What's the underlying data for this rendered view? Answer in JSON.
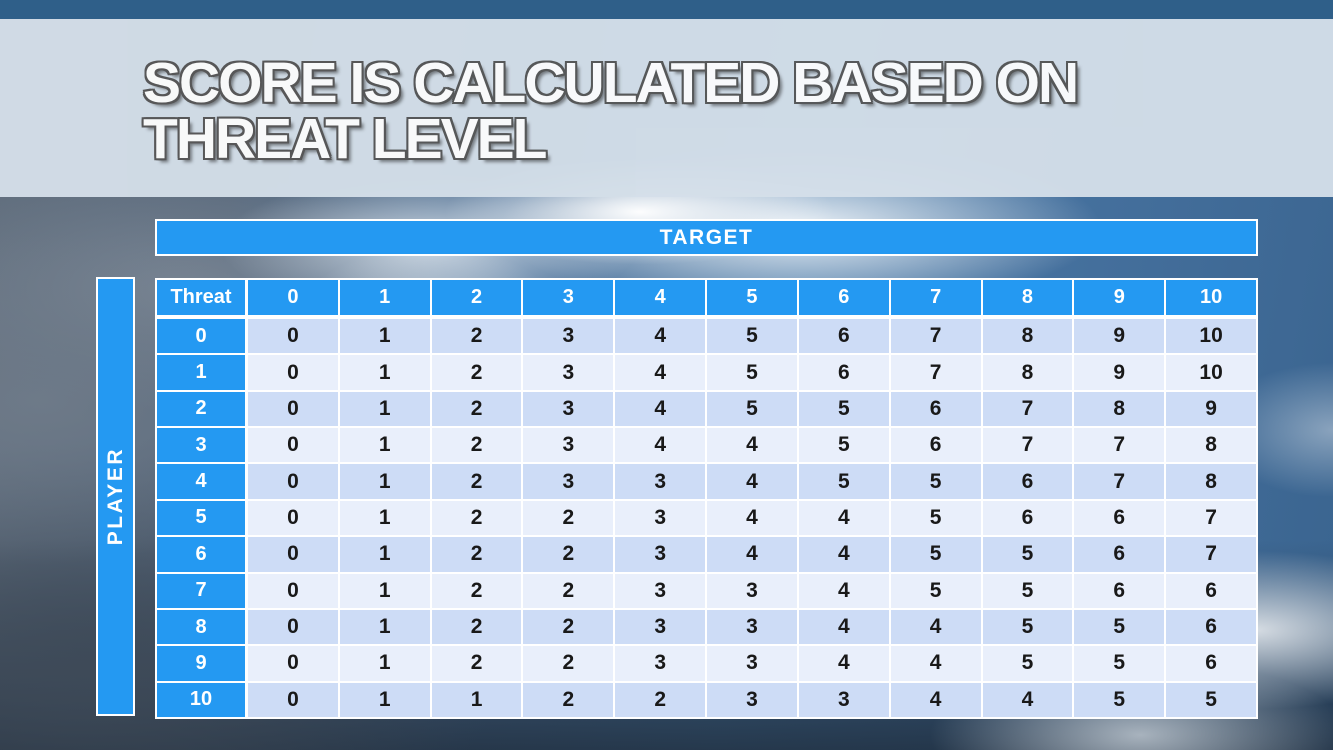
{
  "slide": {
    "title_line1": "SCORE IS CALCULATED BASED ON",
    "title_line2": "THREAT LEVEL"
  },
  "matrix": {
    "target_label": "TARGET",
    "player_label": "PLAYER",
    "corner_label": "Threat",
    "col_headers": [
      "0",
      "1",
      "2",
      "3",
      "4",
      "5",
      "6",
      "7",
      "8",
      "9",
      "10"
    ],
    "row_headers": [
      "0",
      "1",
      "2",
      "3",
      "4",
      "5",
      "6",
      "7",
      "8",
      "9",
      "10"
    ],
    "values": [
      [
        0,
        1,
        2,
        3,
        4,
        5,
        6,
        7,
        8,
        9,
        10
      ],
      [
        0,
        1,
        2,
        3,
        4,
        5,
        6,
        7,
        8,
        9,
        10
      ],
      [
        0,
        1,
        2,
        3,
        4,
        5,
        5,
        6,
        7,
        8,
        9
      ],
      [
        0,
        1,
        2,
        3,
        4,
        4,
        5,
        6,
        7,
        7,
        8
      ],
      [
        0,
        1,
        2,
        3,
        3,
        4,
        5,
        5,
        6,
        7,
        8
      ],
      [
        0,
        1,
        2,
        2,
        3,
        4,
        4,
        5,
        6,
        6,
        7
      ],
      [
        0,
        1,
        2,
        2,
        3,
        4,
        4,
        5,
        5,
        6,
        7
      ],
      [
        0,
        1,
        2,
        2,
        3,
        3,
        4,
        5,
        5,
        6,
        6
      ],
      [
        0,
        1,
        2,
        2,
        3,
        3,
        4,
        4,
        5,
        5,
        6
      ],
      [
        0,
        1,
        2,
        2,
        3,
        3,
        4,
        4,
        5,
        5,
        6
      ],
      [
        0,
        1,
        1,
        2,
        2,
        3,
        3,
        4,
        4,
        5,
        5
      ]
    ]
  },
  "colors": {
    "accent_blue": "#2499f2",
    "row_shade_a": "#cddcf6",
    "row_shade_b": "#e9effb",
    "top_strip": "#2f5f89",
    "banner": "#d4dfe9",
    "cell_text": "#191919",
    "header_text": "#ffffff",
    "title_text": "#ffffff"
  }
}
